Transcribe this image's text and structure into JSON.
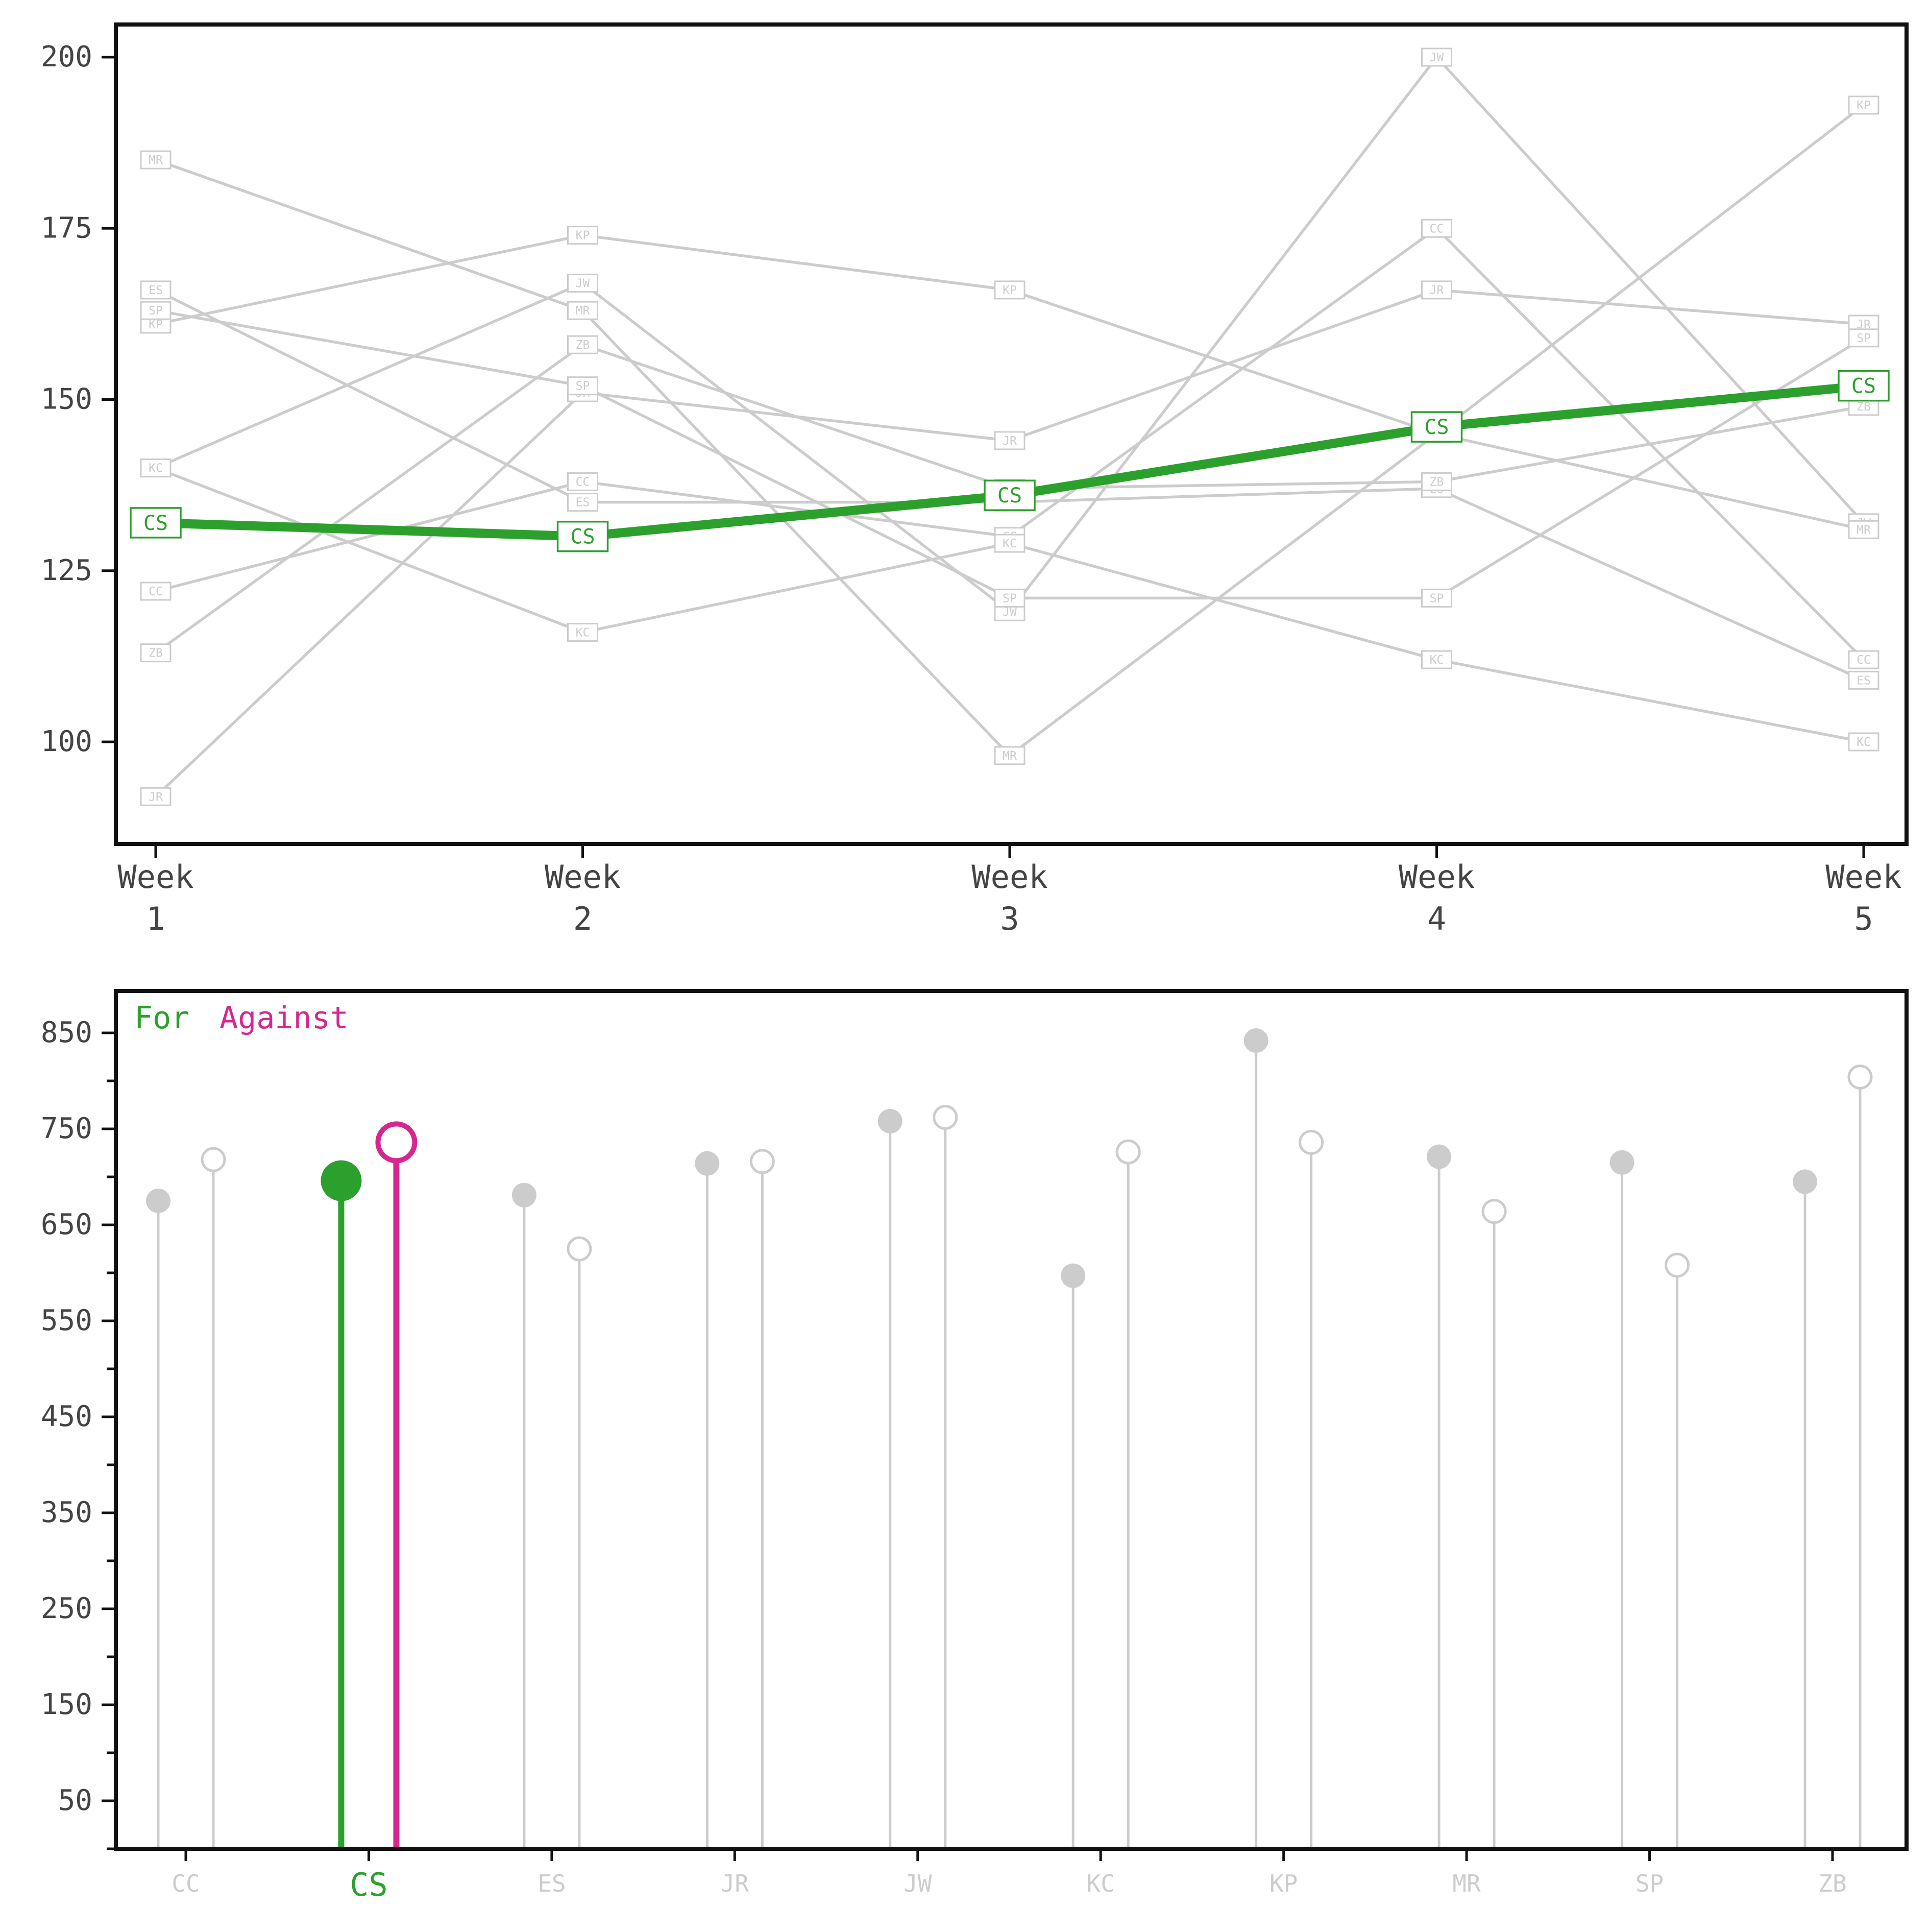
{
  "chart_data": [
    {
      "type": "line",
      "title": "",
      "xlabel": "",
      "ylabel": "",
      "x": [
        "Week 1",
        "Week 2",
        "Week 3",
        "Week 4",
        "Week 5"
      ],
      "x_tick_labels": [
        [
          "Week",
          "1"
        ],
        [
          "Week",
          "2"
        ],
        [
          "Week",
          "3"
        ],
        [
          "Week",
          "4"
        ],
        [
          "Week",
          "5"
        ]
      ],
      "y_ticks": [
        "100",
        "125",
        "150",
        "175",
        "200"
      ],
      "ylim": [
        85,
        205
      ],
      "grid": false,
      "highlight_series": "CS",
      "highlight_color": "#2ca02c",
      "background_color": "#cccccc",
      "series": [
        {
          "name": "CC",
          "values": [
            122,
            138,
            130,
            175,
            112
          ]
        },
        {
          "name": "CS",
          "values": [
            132,
            130,
            136,
            146,
            152
          ]
        },
        {
          "name": "ES",
          "values": [
            166,
            135,
            135,
            137,
            109
          ]
        },
        {
          "name": "JR",
          "values": [
            92,
            151,
            144,
            166,
            161
          ]
        },
        {
          "name": "JW",
          "values": [
            140,
            167,
            119,
            200,
            132
          ]
        },
        {
          "name": "KC",
          "values": [
            140,
            116,
            129,
            112,
            100
          ]
        },
        {
          "name": "KP",
          "values": [
            161,
            174,
            166,
            145,
            193
          ]
        },
        {
          "name": "MR",
          "values": [
            185,
            163,
            98,
            145,
            131
          ]
        },
        {
          "name": "SP",
          "values": [
            163,
            152,
            121,
            121,
            159
          ]
        },
        {
          "name": "ZB",
          "values": [
            113,
            158,
            137,
            138,
            149
          ]
        }
      ]
    },
    {
      "type": "lollipop",
      "title": "",
      "xlabel": "",
      "ylabel": "",
      "legend": {
        "position": "top-left",
        "for_label": "For",
        "against_label": "Against"
      },
      "categories": [
        "CC",
        "CS",
        "ES",
        "JR",
        "JW",
        "KC",
        "KP",
        "MR",
        "SP",
        "ZB"
      ],
      "y_ticks": [
        "50",
        "150",
        "250",
        "350",
        "450",
        "550",
        "650",
        "750",
        "850"
      ],
      "ylim": [
        0,
        900
      ],
      "highlight": "CS",
      "colors": {
        "for": "#2ca02c",
        "against": "#d62790",
        "background": "#cccccc"
      },
      "series": [
        {
          "name": "For",
          "values": [
            675,
            696,
            681,
            714,
            758,
            597,
            842,
            721,
            715,
            695
          ]
        },
        {
          "name": "Against",
          "values": [
            718,
            736,
            625,
            716,
            762,
            726,
            736,
            664,
            608,
            804
          ]
        }
      ]
    }
  ]
}
